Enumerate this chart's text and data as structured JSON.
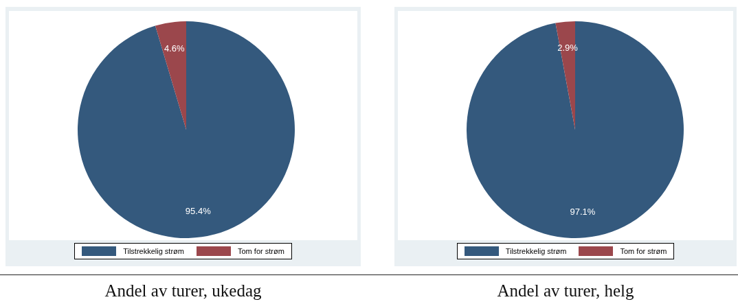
{
  "chart_data": [
    {
      "type": "pie",
      "title": "Andel av turer, ukedag",
      "categories": [
        "Tilstrekkelig strøm",
        "Tom for strøm"
      ],
      "values": [
        95.4,
        4.6
      ],
      "value_labels": [
        "95.4%",
        "4.6%"
      ],
      "colors": [
        "#34597d",
        "#9b474c"
      ],
      "legend": "bottom"
    },
    {
      "type": "pie",
      "title": "Andel av turer, helg",
      "categories": [
        "Tilstrekkelig strøm",
        "Tom for strøm"
      ],
      "values": [
        97.1,
        2.9
      ],
      "value_labels": [
        "97.1%",
        "2.9%"
      ],
      "colors": [
        "#34597d",
        "#9b474c"
      ],
      "legend": "bottom"
    }
  ]
}
